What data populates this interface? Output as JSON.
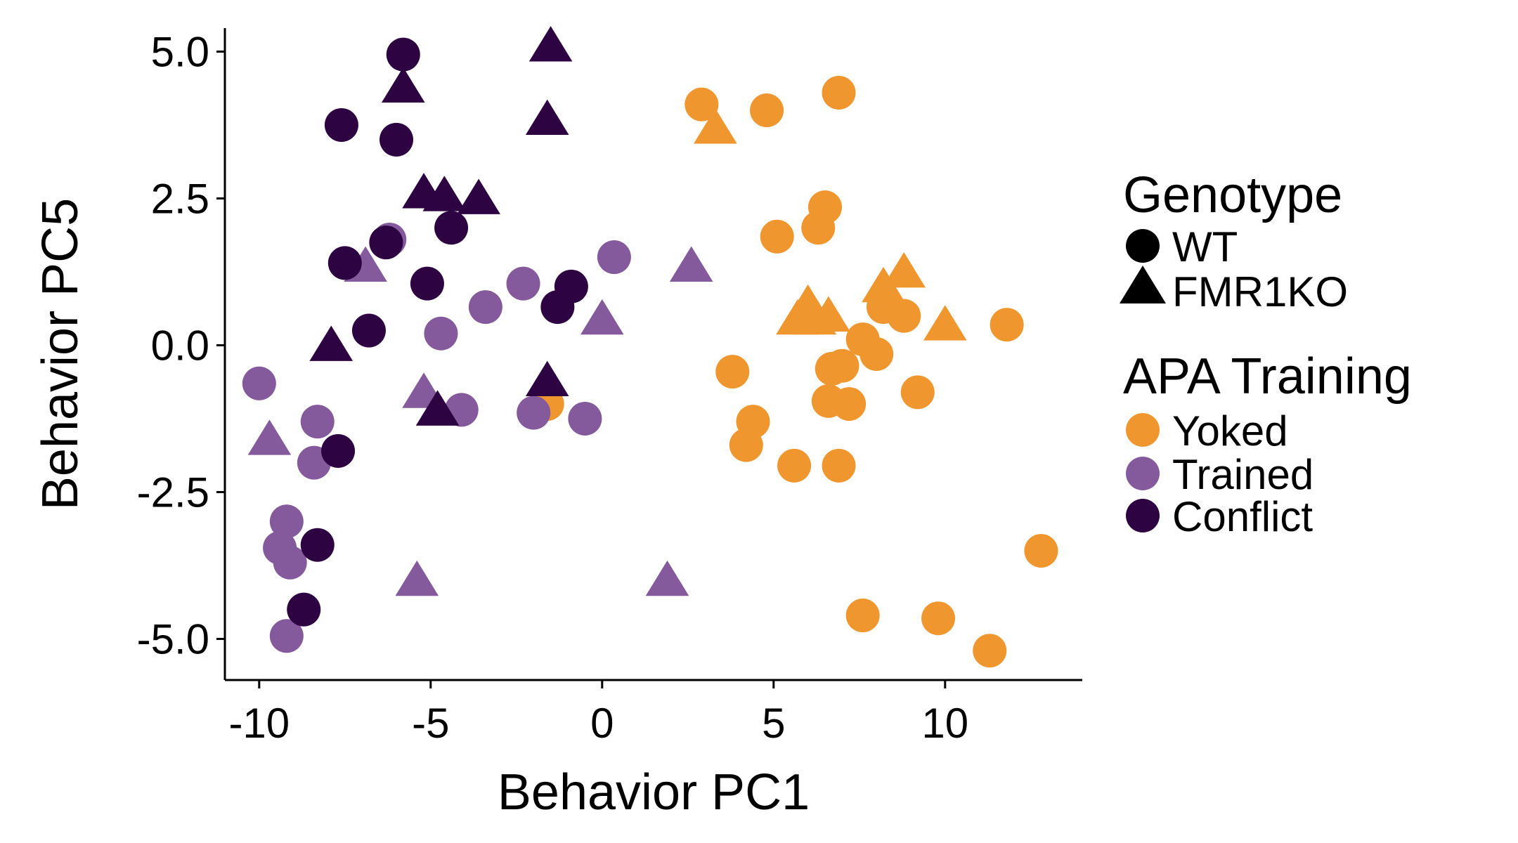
{
  "chart_data": {
    "type": "scatter",
    "xlabel": "Behavior PC1",
    "ylabel": "Behavior PC5",
    "xlim": [
      -11,
      14
    ],
    "ylim": [
      -5.7,
      5.4
    ],
    "x_ticks": [
      -10,
      -5,
      0,
      5,
      10
    ],
    "x_tick_labels": [
      "-10",
      "-5",
      "0",
      "5",
      "10"
    ],
    "y_ticks": [
      -5.0,
      -2.5,
      0.0,
      2.5,
      5.0
    ],
    "y_tick_labels": [
      "-5.0",
      "-2.5",
      "0.0",
      "2.5",
      "5.0"
    ],
    "grid": false,
    "legend_placement": "right",
    "legends": [
      {
        "title": "Genotype",
        "items": [
          {
            "label": "WT",
            "shape": "circle"
          },
          {
            "label": "FMR1KO",
            "shape": "triangle"
          }
        ]
      },
      {
        "title": "APA Training",
        "items": [
          {
            "label": "Yoked",
            "color": "#F0962E"
          },
          {
            "label": "Trained",
            "color": "#845A9D"
          },
          {
            "label": "Conflict",
            "color": "#2D0342"
          }
        ]
      }
    ],
    "colors": {
      "Yoked": "#F0962E",
      "Trained": "#845A9D",
      "Conflict": "#2D0342"
    },
    "points": [
      {
        "x": 2.9,
        "y": 4.1,
        "training": "Yoked",
        "genotype": "WT"
      },
      {
        "x": 4.8,
        "y": 4.0,
        "training": "Yoked",
        "genotype": "WT"
      },
      {
        "x": 6.9,
        "y": 4.3,
        "training": "Yoked",
        "genotype": "WT"
      },
      {
        "x": 6.5,
        "y": 2.35,
        "training": "Yoked",
        "genotype": "WT"
      },
      {
        "x": 6.3,
        "y": 2.0,
        "training": "Yoked",
        "genotype": "WT"
      },
      {
        "x": 5.1,
        "y": 1.85,
        "training": "Yoked",
        "genotype": "WT"
      },
      {
        "x": 8.2,
        "y": 0.65,
        "training": "Yoked",
        "genotype": "WT"
      },
      {
        "x": 8.8,
        "y": 0.5,
        "training": "Yoked",
        "genotype": "WT"
      },
      {
        "x": 7.6,
        "y": 0.1,
        "training": "Yoked",
        "genotype": "WT"
      },
      {
        "x": 8.0,
        "y": -0.15,
        "training": "Yoked",
        "genotype": "WT"
      },
      {
        "x": 11.8,
        "y": 0.35,
        "training": "Yoked",
        "genotype": "WT"
      },
      {
        "x": 3.8,
        "y": -0.45,
        "training": "Yoked",
        "genotype": "WT"
      },
      {
        "x": 6.7,
        "y": -0.4,
        "training": "Yoked",
        "genotype": "WT"
      },
      {
        "x": 7.0,
        "y": -0.35,
        "training": "Yoked",
        "genotype": "WT"
      },
      {
        "x": 9.2,
        "y": -0.8,
        "training": "Yoked",
        "genotype": "WT"
      },
      {
        "x": 6.6,
        "y": -0.95,
        "training": "Yoked",
        "genotype": "WT"
      },
      {
        "x": 7.2,
        "y": -1.0,
        "training": "Yoked",
        "genotype": "WT"
      },
      {
        "x": 4.4,
        "y": -1.3,
        "training": "Yoked",
        "genotype": "WT"
      },
      {
        "x": 4.2,
        "y": -1.7,
        "training": "Yoked",
        "genotype": "WT"
      },
      {
        "x": 5.6,
        "y": -2.05,
        "training": "Yoked",
        "genotype": "WT"
      },
      {
        "x": 6.9,
        "y": -2.05,
        "training": "Yoked",
        "genotype": "WT"
      },
      {
        "x": 12.8,
        "y": -3.5,
        "training": "Yoked",
        "genotype": "WT"
      },
      {
        "x": 7.6,
        "y": -4.6,
        "training": "Yoked",
        "genotype": "WT"
      },
      {
        "x": 9.8,
        "y": -4.65,
        "training": "Yoked",
        "genotype": "WT"
      },
      {
        "x": 11.3,
        "y": -5.2,
        "training": "Yoked",
        "genotype": "WT"
      },
      {
        "x": -1.6,
        "y": -1.0,
        "training": "Yoked",
        "genotype": "WT"
      },
      {
        "x": 3.3,
        "y": 3.7,
        "training": "Yoked",
        "genotype": "FMR1KO"
      },
      {
        "x": 8.2,
        "y": 1.0,
        "training": "Yoked",
        "genotype": "FMR1KO"
      },
      {
        "x": 8.8,
        "y": 1.25,
        "training": "Yoked",
        "genotype": "FMR1KO"
      },
      {
        "x": 5.7,
        "y": 0.45,
        "training": "Yoked",
        "genotype": "FMR1KO"
      },
      {
        "x": 6.0,
        "y": 0.7,
        "training": "Yoked",
        "genotype": "FMR1KO"
      },
      {
        "x": 6.2,
        "y": 0.45,
        "training": "Yoked",
        "genotype": "FMR1KO"
      },
      {
        "x": 6.6,
        "y": 0.5,
        "training": "Yoked",
        "genotype": "FMR1KO"
      },
      {
        "x": 10.0,
        "y": 0.35,
        "training": "Yoked",
        "genotype": "FMR1KO"
      },
      {
        "x": -6.2,
        "y": 1.8,
        "training": "Trained",
        "genotype": "WT"
      },
      {
        "x": 0.35,
        "y": 1.5,
        "training": "Trained",
        "genotype": "WT"
      },
      {
        "x": -2.3,
        "y": 1.05,
        "training": "Trained",
        "genotype": "WT"
      },
      {
        "x": -3.4,
        "y": 0.65,
        "training": "Trained",
        "genotype": "WT"
      },
      {
        "x": -4.7,
        "y": 0.2,
        "training": "Trained",
        "genotype": "WT"
      },
      {
        "x": -10.0,
        "y": -0.65,
        "training": "Trained",
        "genotype": "WT"
      },
      {
        "x": -4.1,
        "y": -1.1,
        "training": "Trained",
        "genotype": "WT"
      },
      {
        "x": -2.0,
        "y": -1.15,
        "training": "Trained",
        "genotype": "WT"
      },
      {
        "x": -0.5,
        "y": -1.25,
        "training": "Trained",
        "genotype": "WT"
      },
      {
        "x": -8.3,
        "y": -1.3,
        "training": "Trained",
        "genotype": "WT"
      },
      {
        "x": -8.4,
        "y": -2.0,
        "training": "Trained",
        "genotype": "WT"
      },
      {
        "x": -9.2,
        "y": -3.0,
        "training": "Trained",
        "genotype": "WT"
      },
      {
        "x": -9.4,
        "y": -3.45,
        "training": "Trained",
        "genotype": "WT"
      },
      {
        "x": -9.1,
        "y": -3.7,
        "training": "Trained",
        "genotype": "WT"
      },
      {
        "x": -9.2,
        "y": -4.95,
        "training": "Trained",
        "genotype": "WT"
      },
      {
        "x": -6.9,
        "y": 1.35,
        "training": "Trained",
        "genotype": "FMR1KO"
      },
      {
        "x": 2.6,
        "y": 1.35,
        "training": "Trained",
        "genotype": "FMR1KO"
      },
      {
        "x": 0.0,
        "y": 0.45,
        "training": "Trained",
        "genotype": "FMR1KO"
      },
      {
        "x": -5.2,
        "y": -0.8,
        "training": "Trained",
        "genotype": "FMR1KO"
      },
      {
        "x": -9.7,
        "y": -1.6,
        "training": "Trained",
        "genotype": "FMR1KO"
      },
      {
        "x": -5.4,
        "y": -4.0,
        "training": "Trained",
        "genotype": "FMR1KO"
      },
      {
        "x": 1.9,
        "y": -4.0,
        "training": "Trained",
        "genotype": "FMR1KO"
      },
      {
        "x": -5.8,
        "y": 4.95,
        "training": "Conflict",
        "genotype": "WT"
      },
      {
        "x": -7.6,
        "y": 3.75,
        "training": "Conflict",
        "genotype": "WT"
      },
      {
        "x": -6.0,
        "y": 3.5,
        "training": "Conflict",
        "genotype": "WT"
      },
      {
        "x": -4.4,
        "y": 2.0,
        "training": "Conflict",
        "genotype": "WT"
      },
      {
        "x": -6.3,
        "y": 1.75,
        "training": "Conflict",
        "genotype": "WT"
      },
      {
        "x": -7.5,
        "y": 1.4,
        "training": "Conflict",
        "genotype": "WT"
      },
      {
        "x": -5.1,
        "y": 1.05,
        "training": "Conflict",
        "genotype": "WT"
      },
      {
        "x": -0.9,
        "y": 1.0,
        "training": "Conflict",
        "genotype": "WT"
      },
      {
        "x": -1.3,
        "y": 0.65,
        "training": "Conflict",
        "genotype": "WT"
      },
      {
        "x": -6.8,
        "y": 0.25,
        "training": "Conflict",
        "genotype": "WT"
      },
      {
        "x": -7.7,
        "y": -1.8,
        "training": "Conflict",
        "genotype": "WT"
      },
      {
        "x": -8.3,
        "y": -3.4,
        "training": "Conflict",
        "genotype": "WT"
      },
      {
        "x": -8.7,
        "y": -4.5,
        "training": "Conflict",
        "genotype": "WT"
      },
      {
        "x": -1.5,
        "y": 5.1,
        "training": "Conflict",
        "genotype": "FMR1KO"
      },
      {
        "x": -5.8,
        "y": 4.4,
        "training": "Conflict",
        "genotype": "FMR1KO"
      },
      {
        "x": -1.6,
        "y": 3.85,
        "training": "Conflict",
        "genotype": "FMR1KO"
      },
      {
        "x": -5.2,
        "y": 2.6,
        "training": "Conflict",
        "genotype": "FMR1KO"
      },
      {
        "x": -4.6,
        "y": 2.55,
        "training": "Conflict",
        "genotype": "FMR1KO"
      },
      {
        "x": -3.6,
        "y": 2.5,
        "training": "Conflict",
        "genotype": "FMR1KO"
      },
      {
        "x": -7.9,
        "y": 0.0,
        "training": "Conflict",
        "genotype": "FMR1KO"
      },
      {
        "x": -1.6,
        "y": -0.6,
        "training": "Conflict",
        "genotype": "FMR1KO"
      },
      {
        "x": -4.8,
        "y": -1.1,
        "training": "Conflict",
        "genotype": "FMR1KO"
      }
    ]
  }
}
